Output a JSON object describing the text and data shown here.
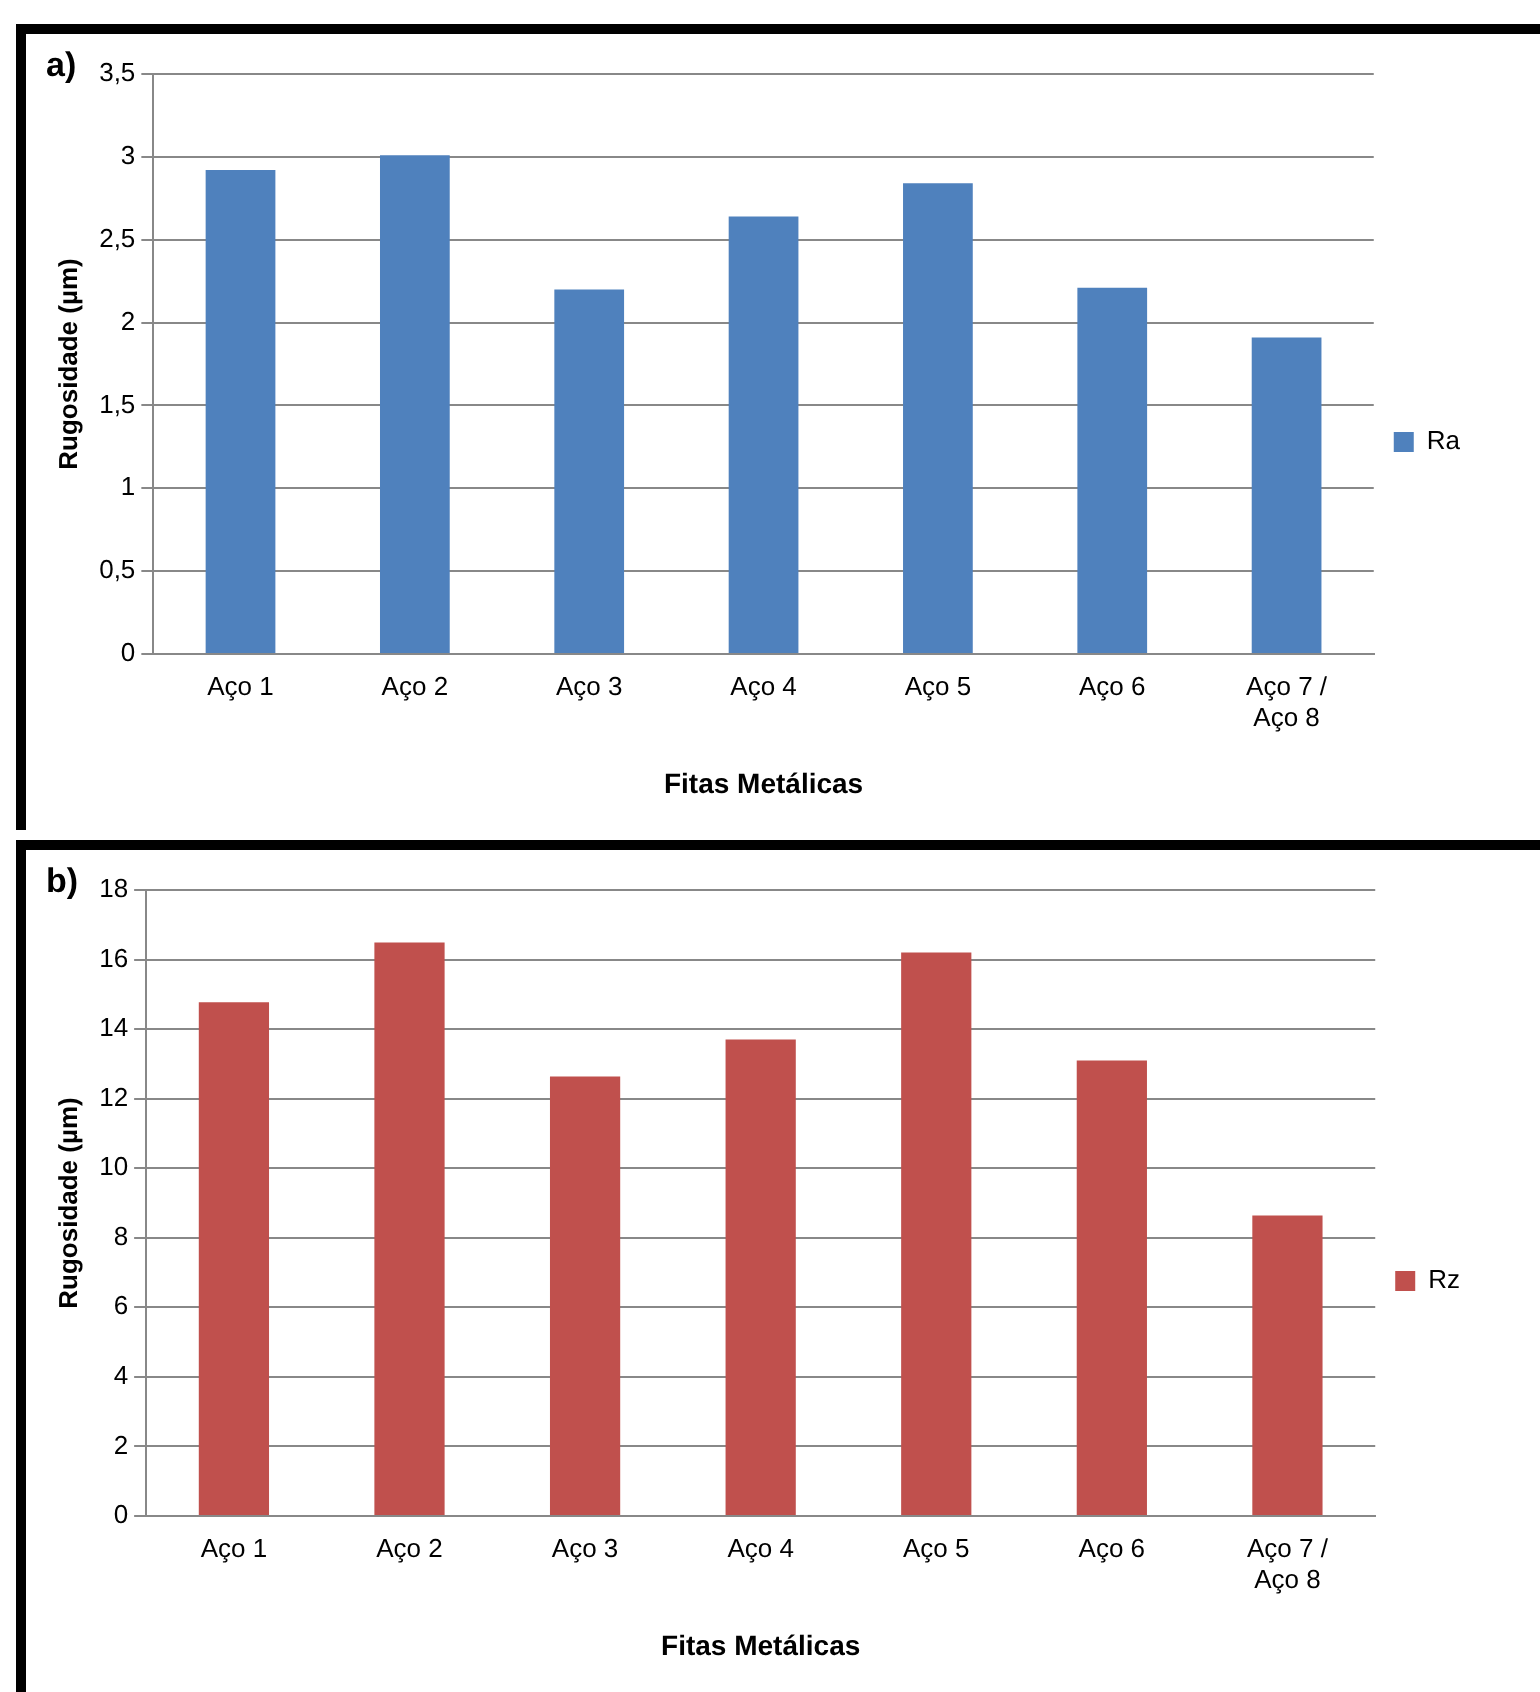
{
  "chart_data": [
    {
      "type": "bar",
      "annotations": [
        "a)"
      ],
      "xlabel": "Fitas Metálicas",
      "ylabel": "Rugosidade (µm)",
      "categories": [
        "Aço 1",
        "Aço 2",
        "Aço 3",
        "Aço 4",
        "Aço 5",
        "Aço 6",
        "Aço 7 / Aço 8"
      ],
      "series": [
        {
          "name": "Ra",
          "color": "#4f81bd",
          "values": [
            2.92,
            3.01,
            2.2,
            2.64,
            2.84,
            2.21,
            1.91
          ]
        }
      ],
      "ylim": [
        0,
        3.5
      ],
      "yticks": [
        0,
        {
          "value": 0.5,
          "label": "0,5"
        },
        1,
        {
          "value": 1.5,
          "label": "1,5"
        },
        2,
        {
          "value": 2.5,
          "label": "2,5"
        },
        3,
        {
          "value": 3.5,
          "label": "3,5"
        }
      ],
      "grid": "y",
      "legend": "right"
    },
    {
      "type": "bar",
      "annotations": [
        "b)"
      ],
      "xlabel": "Fitas Metálicas",
      "ylabel": "Rugosidade (µm)",
      "categories": [
        "Aço 1",
        "Aço 2",
        "Aço 3",
        "Aço 4",
        "Aço 5",
        "Aço 6",
        "Aço 7 / Aço 8"
      ],
      "series": [
        {
          "name": "Rz",
          "color": "#c0504d",
          "values": [
            14.77,
            16.49,
            12.64,
            13.7,
            16.2,
            13.1,
            8.64
          ]
        }
      ],
      "ylim": [
        0,
        18
      ],
      "yticks": [
        0,
        2,
        4,
        6,
        8,
        10,
        12,
        14,
        16,
        18
      ],
      "grid": "y",
      "legend": "right"
    }
  ]
}
